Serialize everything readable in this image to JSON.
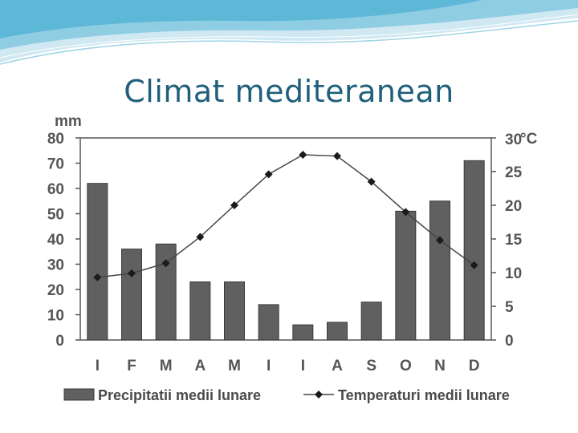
{
  "slide": {
    "title": "Climat mediteranean"
  },
  "chart_data": {
    "type": "bar+line",
    "categories": [
      "I",
      "F",
      "M",
      "A",
      "M",
      "I",
      "I",
      "A",
      "S",
      "O",
      "N",
      "D"
    ],
    "left_axis": {
      "unit": "mm",
      "ylim": [
        0,
        80
      ],
      "ticks": [
        0,
        10,
        20,
        30,
        40,
        50,
        60,
        70,
        80
      ]
    },
    "right_axis": {
      "unit": "°C",
      "ylim": [
        0,
        30
      ],
      "ticks": [
        0,
        5,
        10,
        15,
        20,
        25,
        30
      ]
    },
    "series": [
      {
        "name": "Precipitatii medii lunare",
        "kind": "bar",
        "axis": "left",
        "color": "#606060",
        "values": [
          62,
          36,
          38,
          23,
          23,
          14,
          6,
          7,
          15,
          51,
          55,
          71
        ]
      },
      {
        "name": "Temperaturi medii lunare",
        "kind": "line",
        "axis": "right",
        "color": "#1a1a1a",
        "values": [
          9.3,
          9.9,
          11.4,
          15.3,
          20.0,
          24.6,
          27.5,
          27.3,
          23.5,
          19.0,
          14.8,
          11.1
        ]
      }
    ],
    "grid": false,
    "legend": "bottom"
  }
}
